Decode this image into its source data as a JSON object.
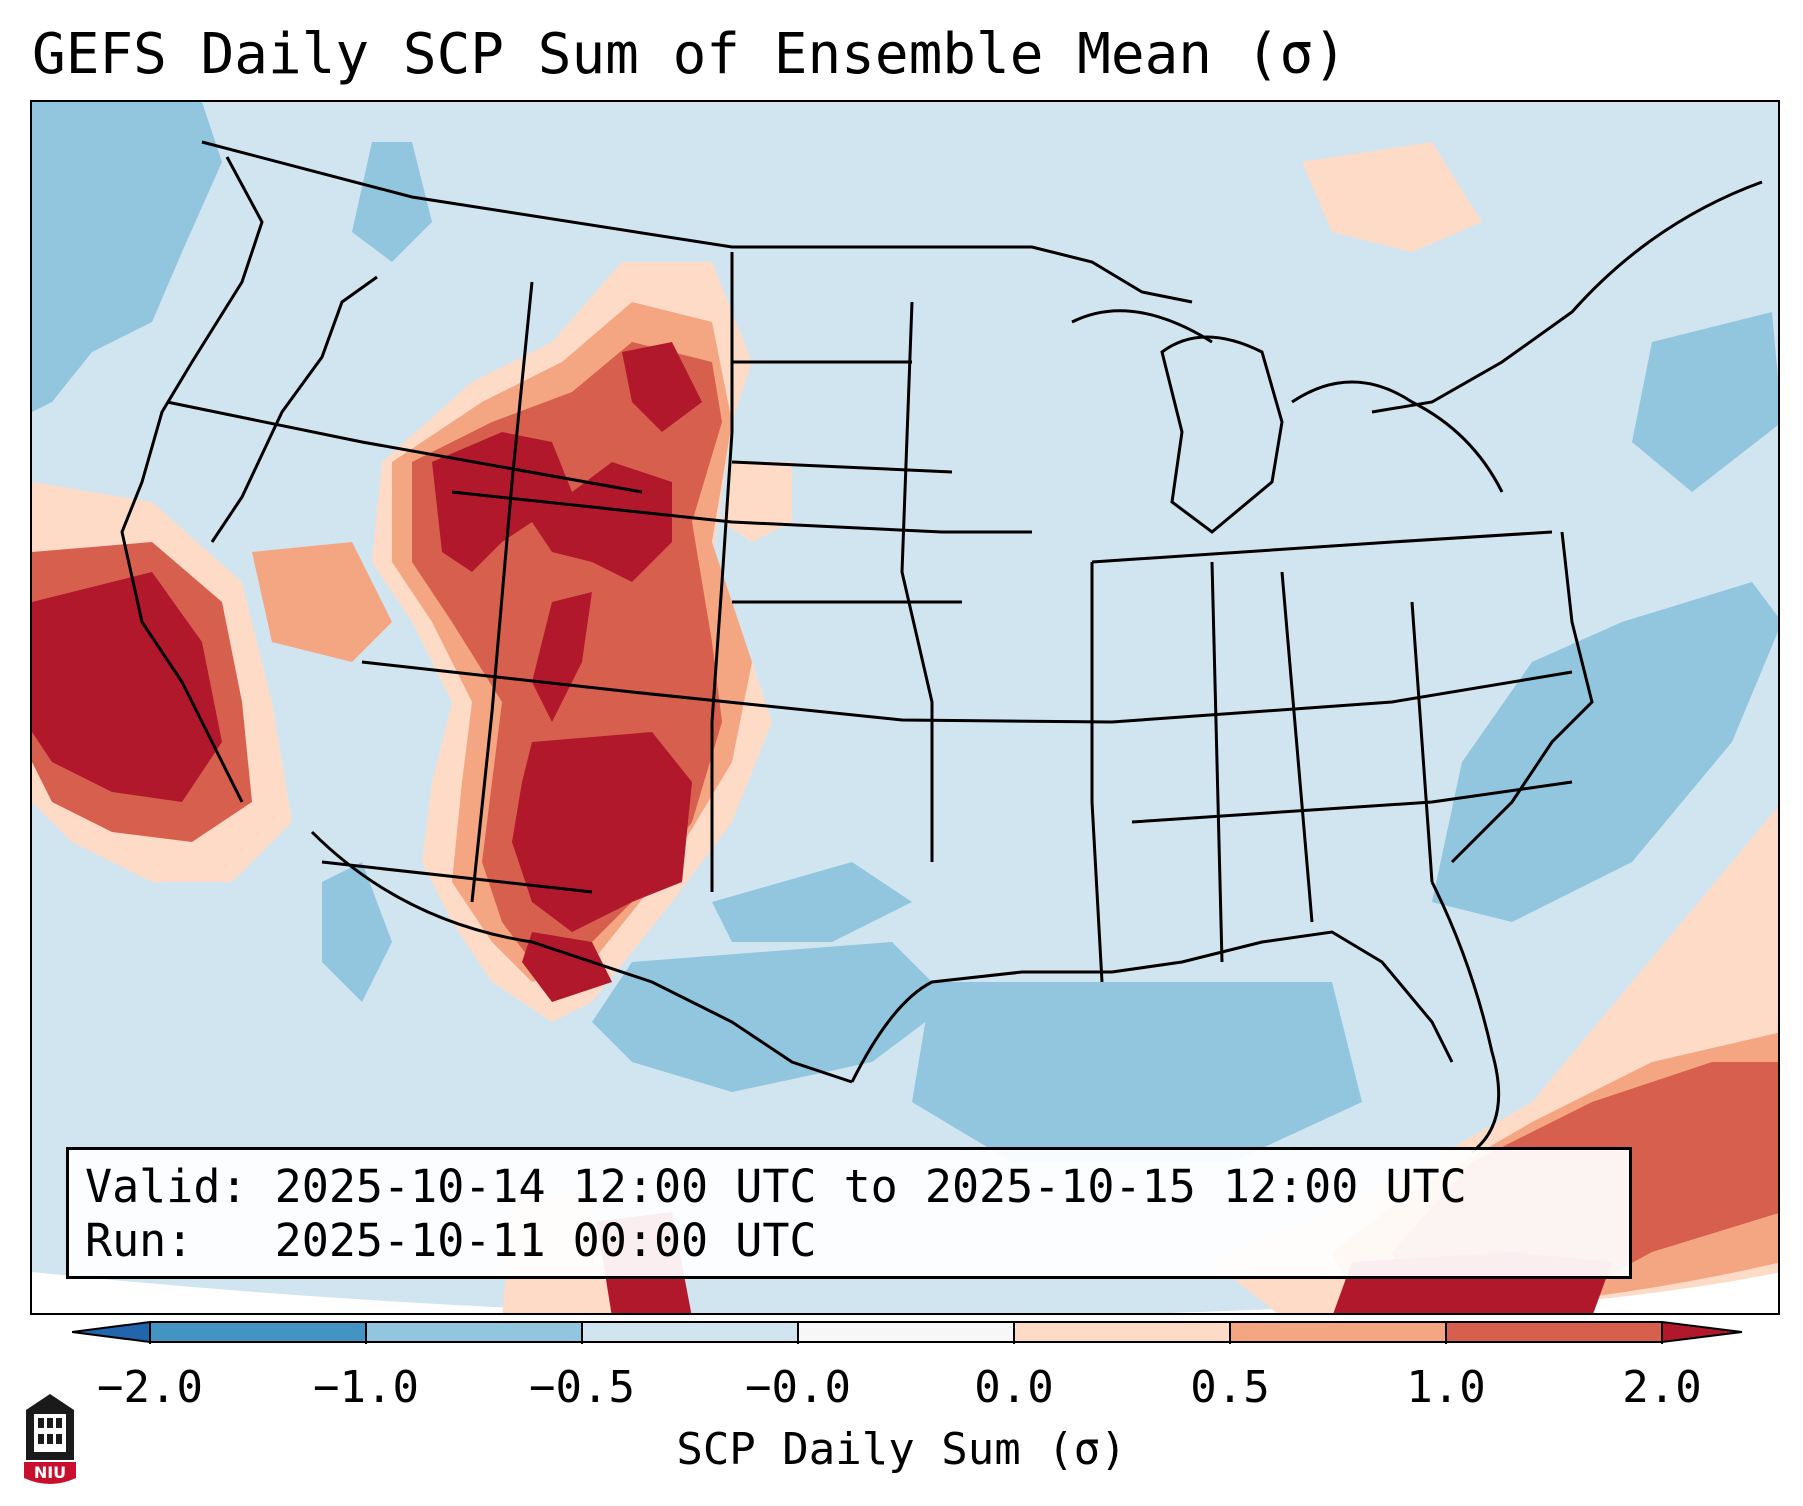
{
  "title": "GEFS Daily SCP Sum of Ensemble Mean (σ)",
  "info": {
    "valid_label": "Valid:",
    "valid_value": "2025-10-14 12:00 UTC to 2025-10-15 12:00 UTC",
    "run_label": "Run:",
    "run_value": "2025-10-11 00:00 UTC"
  },
  "colorbar": {
    "label": "SCP Daily Sum (σ)",
    "ticks": [
      "−2.0",
      "−1.0",
      "−0.5",
      "−0.0",
      "0.0",
      "0.5",
      "1.0",
      "2.0"
    ],
    "colors": {
      "under": "#2166ac",
      "neg_2_to_1": "#4393c3",
      "neg_1_to_05": "#92c5de",
      "neg_05_to_0": "#d1e5f0",
      "zero": "#f7f7f7",
      "pos_0_to_05": "#fddbc7",
      "pos_05_to_1": "#f4a582",
      "pos_1_to_2": "#d6604d",
      "over": "#b2182b"
    }
  },
  "map": {
    "region": "Continental United States",
    "background_class": "−0.5 to −0.0"
  },
  "logo": {
    "text": "NIU"
  }
}
